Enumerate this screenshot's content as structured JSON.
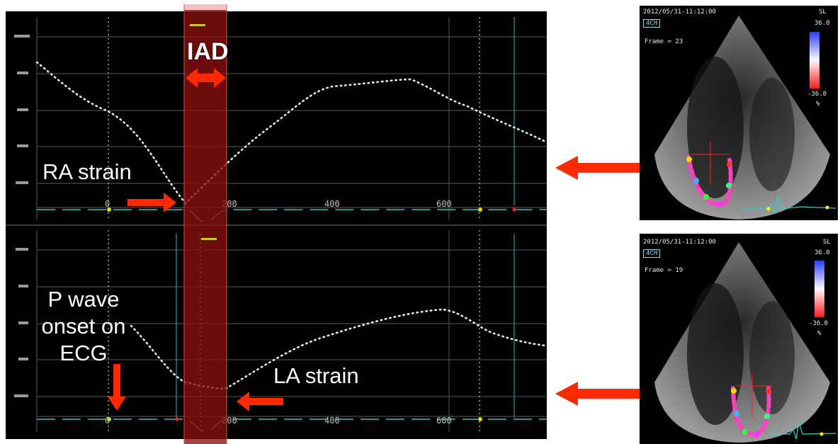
{
  "labels": {
    "iad": "IAD",
    "ra_strain": "RA strain",
    "la_strain": "LA strain",
    "p_wave": "P wave onset on ECG"
  },
  "axis": {
    "top_ticks": [
      "0",
      "200",
      "400",
      "600"
    ],
    "bottom_ticks": [
      "0",
      "200",
      "400",
      "600"
    ]
  },
  "echo_top": {
    "timestamp": "2012/05/31-11:12:00",
    "view": "4CH",
    "frame": "Frame = 23",
    "mode": "SL",
    "scale_max": "36.0",
    "scale_min": "-36.0",
    "unit": "%"
  },
  "echo_bottom": {
    "timestamp": "2012/05/31-11:12:00",
    "view": "4CH",
    "frame": "Frame = 19",
    "mode": "SL",
    "scale_max": "36.0",
    "scale_min": "-36.0",
    "unit": "%"
  },
  "colors": {
    "highlight": "#8a1010",
    "arrow": "#ff2a00",
    "curve": "#e8e8e8",
    "ecg": "#2fa8a8"
  }
}
